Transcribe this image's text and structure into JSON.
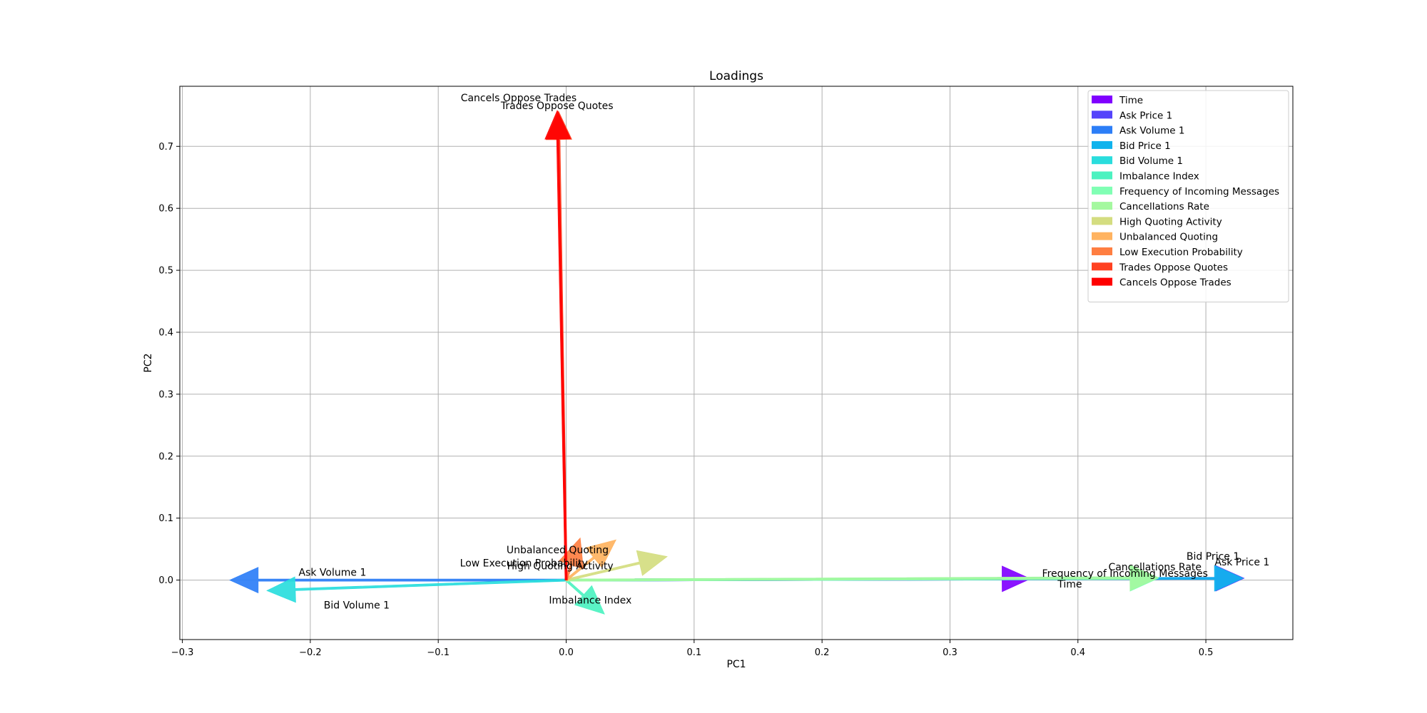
{
  "chart_data": {
    "type": "loadings-biplot",
    "title": "Loadings",
    "xlabel": "PC1",
    "ylabel": "PC2",
    "xlim": [
      -0.302,
      0.568
    ],
    "ylim": [
      -0.096,
      0.797
    ],
    "xticks": [
      -0.3,
      -0.2,
      -0.1,
      0.0,
      0.1,
      0.2,
      0.3,
      0.4,
      0.5
    ],
    "xtick_labels": [
      "−0.3",
      "−0.2",
      "−0.1",
      "0.0",
      "0.1",
      "0.2",
      "0.3",
      "0.4",
      "0.5"
    ],
    "yticks": [
      0.0,
      0.1,
      0.2,
      0.3,
      0.4,
      0.5,
      0.6,
      0.7
    ],
    "ytick_labels": [
      "0.0",
      "0.1",
      "0.2",
      "0.3",
      "0.4",
      "0.5",
      "0.6",
      "0.7"
    ],
    "grid": true,
    "legend_position": "top-right",
    "series": [
      {
        "name": "Time",
        "x": 0.363,
        "y": 0.002,
        "label": "Time",
        "color": "#8000ff"
      },
      {
        "name": "Ask Price 1",
        "x": 0.53,
        "y": 0.003,
        "label": "Ask Price 1",
        "color": "#5544fb"
      },
      {
        "name": "Ask Volume 1",
        "x": -0.263,
        "y": 0.0,
        "label": "Ask Volume 1",
        "color": "#2c7ef7"
      },
      {
        "name": "Bid Price 1",
        "x": 0.529,
        "y": 0.003,
        "label": "Bid Price 1",
        "color": "#0fb3ed"
      },
      {
        "name": "Bid Volume 1",
        "x": -0.234,
        "y": -0.017,
        "label": "Bid Volume 1",
        "color": "#2adddd"
      },
      {
        "name": "Imbalance Index",
        "x": 0.03,
        "y": -0.055,
        "label": "Imbalance Index",
        "color": "#4cf2c0"
      },
      {
        "name": "Frequency of Incoming Messages",
        "x": 0.463,
        "y": 0.003,
        "label": "Frequency of Incoming Messages",
        "color": "#80ffb4"
      },
      {
        "name": "Cancellations Rate",
        "x": 0.463,
        "y": 0.004,
        "label": "Cancellations Rate",
        "color": "#a4f89f"
      },
      {
        "name": "High Quoting Activity",
        "x": 0.079,
        "y": 0.038,
        "label": "High Quoting Activity",
        "color": "#d4dd80"
      },
      {
        "name": "Unbalanced Quoting",
        "x": 0.039,
        "y": 0.065,
        "label": "Unbalanced Quoting",
        "color": "#ffb360"
      },
      {
        "name": "Low Execution Probability",
        "x": 0.011,
        "y": 0.068,
        "label": "Low Execution Probability",
        "color": "#ff7e41"
      },
      {
        "name": "Trades Oppose Quotes",
        "x": -0.006,
        "y": 0.757,
        "label": "Trades Oppose Quotes",
        "color": "#ff4121"
      },
      {
        "name": "Cancels Oppose Trades",
        "x": -0.007,
        "y": 0.758,
        "label": "Cancels Oppose Trades",
        "color": "#ff0000"
      }
    ]
  }
}
